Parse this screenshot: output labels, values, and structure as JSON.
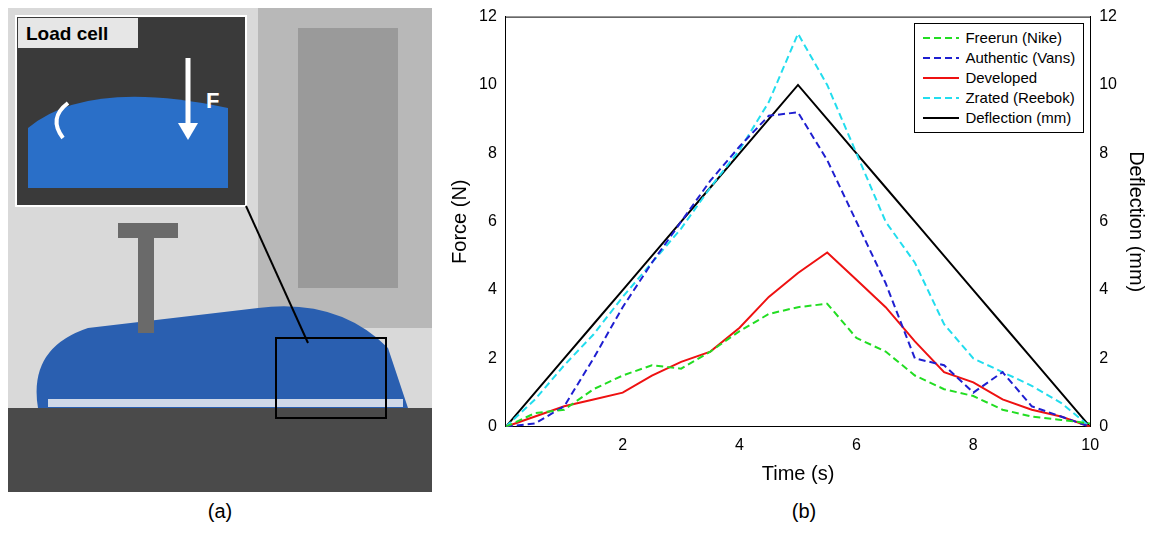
{
  "photo": {
    "panel_label": "(a)",
    "labels": [
      "Load cell",
      "F"
    ]
  },
  "chart_data": {
    "type": "line",
    "panel_label": "(b)",
    "x_label": "Time (s)",
    "y_label": "Force (N)",
    "y2_label": "Deflection (mm)",
    "x": [
      0,
      0.5,
      1,
      1.5,
      2,
      2.5,
      3,
      3.5,
      4,
      4.5,
      5,
      5.5,
      6,
      6.5,
      7,
      7.5,
      8,
      8.5,
      9,
      9.5,
      10
    ],
    "xlim": [
      0,
      10
    ],
    "xticks": [
      2,
      4,
      6,
      8,
      10
    ],
    "ylim": [
      0,
      12
    ],
    "yticks": [
      0,
      2,
      4,
      6,
      8,
      10,
      12
    ],
    "y2lim": [
      0,
      12
    ],
    "y2ticks": [
      0,
      2,
      4,
      6,
      8,
      10,
      12
    ],
    "grid": false,
    "legend": "upper right",
    "series": [
      {
        "name": "Freerun (Nike)",
        "color": "#22dd22",
        "line_style": "dashed",
        "values": [
          0,
          0.4,
          0.5,
          1.1,
          1.5,
          1.8,
          1.7,
          2.2,
          2.8,
          3.3,
          3.5,
          3.6,
          2.6,
          2.2,
          1.5,
          1.1,
          0.9,
          0.5,
          0.3,
          0.2,
          0.1
        ]
      },
      {
        "name": "Authentic (Vans)",
        "color": "#1f1fd0",
        "line_style": "dashed",
        "values": [
          0,
          0.1,
          0.6,
          2.0,
          3.5,
          4.8,
          6.0,
          7.2,
          8.2,
          9.1,
          9.2,
          7.8,
          6.0,
          4.2,
          2.0,
          1.8,
          1.0,
          1.6,
          0.6,
          0.3,
          0
        ]
      },
      {
        "name": "Developed",
        "color": "#ee1111",
        "line_style": "solid",
        "values": [
          0,
          0.3,
          0.6,
          0.8,
          1.0,
          1.5,
          1.9,
          2.2,
          2.9,
          3.8,
          4.5,
          5.1,
          4.3,
          3.5,
          2.5,
          1.6,
          1.3,
          0.8,
          0.5,
          0.3,
          0
        ]
      },
      {
        "name": "Zrated (Reebok)",
        "color": "#22ddee",
        "line_style": "dashed",
        "values": [
          0,
          0.8,
          1.8,
          2.7,
          3.8,
          4.8,
          5.8,
          7.0,
          8.1,
          9.5,
          11.5,
          10.0,
          8.0,
          6.0,
          4.8,
          3.0,
          2.0,
          1.6,
          1.2,
          0.7,
          0
        ]
      },
      {
        "name": "Deflection (mm)",
        "color": "#000000",
        "line_style": "solid",
        "axis": "y2",
        "values": [
          0,
          1,
          2,
          3,
          4,
          5,
          6,
          7,
          8,
          9,
          10,
          9,
          8,
          7,
          6,
          5,
          4,
          3,
          2,
          1,
          0
        ]
      }
    ]
  }
}
